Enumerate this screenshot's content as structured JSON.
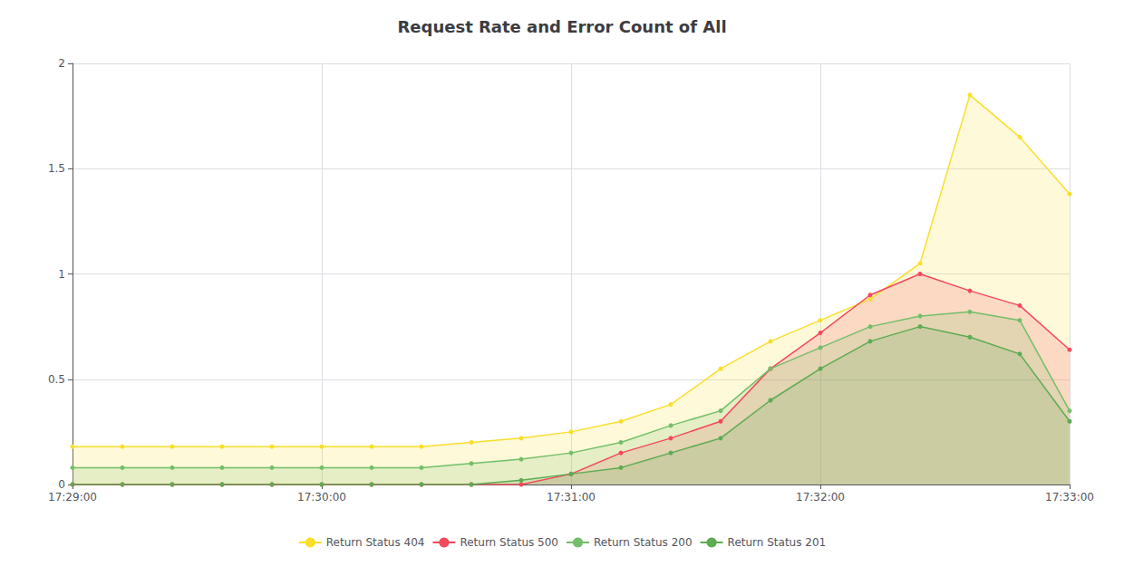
{
  "chart_data": {
    "type": "area",
    "title": "Request Rate and Error Count of All",
    "categories": [
      "17:29:00",
      null,
      null,
      null,
      null,
      "17:30:00",
      null,
      null,
      null,
      null,
      "17:31:00",
      null,
      null,
      null,
      null,
      "17:32:00",
      null,
      null,
      null,
      null,
      "17:33:00"
    ],
    "series": [
      {
        "name": "Return Status 404",
        "color": "#fade2a",
        "values": [
          0.18,
          0.18,
          0.18,
          0.18,
          0.18,
          0.18,
          0.18,
          0.18,
          0.2,
          0.22,
          0.25,
          0.3,
          0.38,
          0.55,
          0.68,
          0.78,
          0.88,
          1.05,
          1.85,
          1.65,
          1.38
        ]
      },
      {
        "name": "Return Status 500",
        "color": "#f2495c",
        "values": [
          0.0,
          0.0,
          0.0,
          0.0,
          0.0,
          0.0,
          0.0,
          0.0,
          0.0,
          0.0,
          0.05,
          0.15,
          0.22,
          0.3,
          0.55,
          0.72,
          0.9,
          1.0,
          0.92,
          0.85,
          0.64
        ]
      },
      {
        "name": "Return Status 200",
        "color": "#73bf69",
        "values": [
          0.08,
          0.08,
          0.08,
          0.08,
          0.08,
          0.08,
          0.08,
          0.08,
          0.1,
          0.12,
          0.15,
          0.2,
          0.28,
          0.35,
          0.55,
          0.65,
          0.75,
          0.8,
          0.82,
          0.78,
          0.35
        ]
      },
      {
        "name": "Return Status 201",
        "color": "#5dab52",
        "values": [
          0.0,
          0.0,
          0.0,
          0.0,
          0.0,
          0.0,
          0.0,
          0.0,
          0.0,
          0.02,
          0.05,
          0.08,
          0.15,
          0.22,
          0.4,
          0.55,
          0.68,
          0.75,
          0.7,
          0.62,
          0.3
        ]
      }
    ],
    "ylim": [
      0,
      2
    ],
    "yticks": [
      0,
      0.5,
      1,
      1.5,
      2
    ],
    "grid": true,
    "legend": "bottom",
    "marker": "circle",
    "line_style": "solid"
  }
}
